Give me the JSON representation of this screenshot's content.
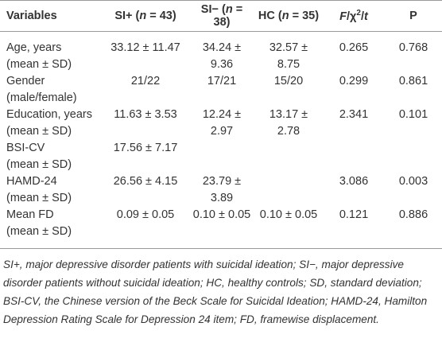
{
  "table": {
    "header": [
      [
        {
          "text": "Variables"
        }
      ],
      [
        {
          "text": "SI+ ("
        },
        {
          "text": "n",
          "italic": true
        },
        {
          "text": " = 43)"
        }
      ],
      [
        {
          "text": "SI− ("
        },
        {
          "text": "n",
          "italic": true
        },
        {
          "text": " = 38)"
        }
      ],
      [
        {
          "text": "HC ("
        },
        {
          "text": "n",
          "italic": true
        },
        {
          "text": " = 35)"
        }
      ],
      [
        {
          "text": "F",
          "italic": true
        },
        {
          "text": "/χ"
        },
        {
          "text": "2",
          "sup": true
        },
        {
          "text": "/"
        },
        {
          "text": "t",
          "italic": true
        }
      ],
      [
        {
          "text": "P"
        }
      ]
    ],
    "rows": [
      {
        "label": [
          "Age, years",
          "(mean ± SD)"
        ],
        "cells": [
          "33.12 ± 11.47",
          "34.24 ± 9.36",
          "32.57 ± 8.75",
          "0.265",
          "0.768"
        ]
      },
      {
        "label": [
          "Gender",
          "(male/female)"
        ],
        "cells": [
          "21/22",
          "17/21",
          "15/20",
          "0.299",
          "0.861"
        ]
      },
      {
        "label": [
          "Education, years",
          "(mean ± SD)"
        ],
        "cells": [
          "11.63 ± 3.53",
          "12.24 ± 2.97",
          "13.17 ± 2.78",
          "2.341",
          "0.101"
        ]
      },
      {
        "label": [
          "BSI-CV",
          "(mean ± SD)"
        ],
        "cells": [
          "17.56 ± 7.17",
          null,
          null,
          null,
          null
        ]
      },
      {
        "label": [
          "HAMD-24",
          "(mean ± SD)"
        ],
        "cells": [
          "26.56 ± 4.15",
          "23.79 ± 3.89",
          null,
          "3.086",
          "0.003"
        ]
      },
      {
        "label": [
          "Mean FD",
          "(mean ± SD)"
        ],
        "cells": [
          "0.09 ± 0.05",
          "0.10 ± 0.05",
          "0.10 ± 0.05",
          "0.121",
          "0.886"
        ]
      }
    ],
    "footnote": "SI+, major depressive disorder patients with suicidal ideation; SI−, major depressive disorder patients without suicidal ideation; HC, healthy controls; SD, standard deviation; BSI-CV, the Chinese version of the Beck Scale for Suicidal Ideation; HAMD-24, Hamilton Depression Rating Scale for Depression 24 item; FD, framewise displacement."
  }
}
